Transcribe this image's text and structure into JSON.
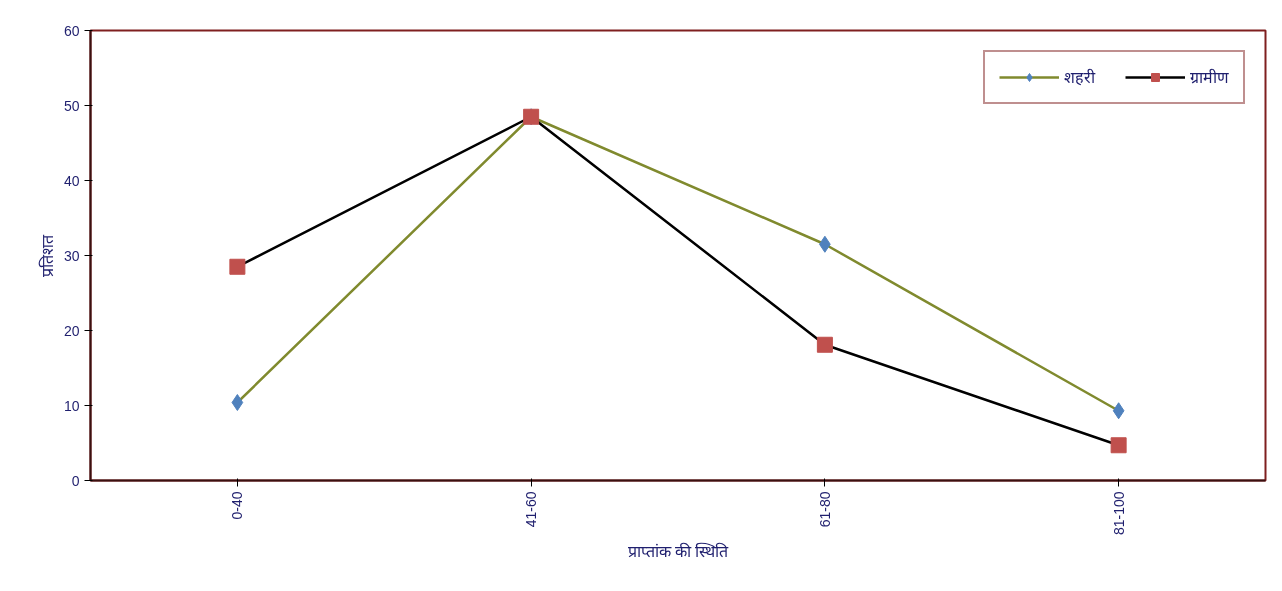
{
  "chart_data": {
    "type": "line",
    "xlabel": "प्राप्तांक की स्थिति",
    "ylabel": "प्रतिशत",
    "categories": [
      "0-40",
      "41-60",
      "61-80",
      "81-100"
    ],
    "series": [
      {
        "name": "शहरी",
        "color": "#808a2e",
        "marker": "diamond",
        "colors": [
          "#4f81bd",
          "#4f81bd",
          "#4f81bd",
          "#4f81bd"
        ],
        "values": [
          10.4,
          48.5,
          31.5,
          9.3
        ]
      },
      {
        "name": "ग्रामीण",
        "color": "#000000",
        "marker": "square",
        "colors": [
          "#c0504d",
          "#c0504d",
          "#c0504d",
          "#c0504d"
        ],
        "values": [
          28.5,
          48.5,
          18.1,
          4.7
        ]
      }
    ],
    "ylim": [
      0,
      60
    ],
    "yticks": [
      0,
      10,
      20,
      30,
      40,
      50,
      60
    ],
    "grid": false,
    "legend": "top right",
    "line_style": "solid"
  }
}
